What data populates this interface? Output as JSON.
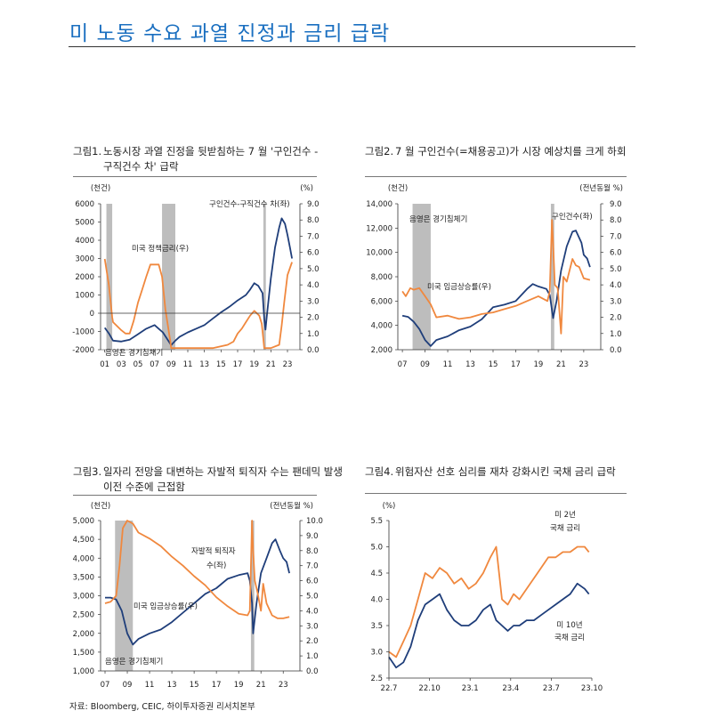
{
  "page": {
    "title": "미 노동 수요 과열 진정과 금리 급락",
    "source": "자료: Bloomberg, CEIC, 하이투자증권 리서치본부"
  },
  "colors": {
    "navy": "#1f3e7a",
    "orange": "#f0883e",
    "recession": "#bdbdbd",
    "title_blue": "#1a6fc0"
  },
  "panels": [
    {
      "label": "그림1.",
      "title_line1": "노동시장 과열 진정을 뒷받침하는 7 월 '구인건수 -",
      "title_line2": "구직건수 차' 급락"
    },
    {
      "label": "그림2.",
      "title_line1": "7 월 구인건수(=채용공고)가 시장 예상치를 크게 하회",
      "title_line2": ""
    },
    {
      "label": "그림3.",
      "title_line1": "일자리 전망을 대변하는 자발적 퇴직자 수는 팬데믹 발생",
      "title_line2": "이전 수준에 근접함"
    },
    {
      "label": "그림4.",
      "title_line1": "위험자산 선호 심리를 재차 강화시킨 국채 금리 급락",
      "title_line2": ""
    }
  ],
  "chart_data": [
    {
      "type": "line",
      "title": "노동시장 과열 진정을 뒷받침하는 7 월 '구인건수 - 구직건수 차' 급락",
      "left_unit": "(천건)",
      "right_unit": "(%)",
      "xlim": [
        2000.5,
        2024.5
      ],
      "left_ylim": [
        -2000,
        6000
      ],
      "right_ylim": [
        0,
        9
      ],
      "left_ticks": [
        "6000",
        "5000",
        "4000",
        "3000",
        "2000",
        "1000",
        "0",
        "-1000",
        "-2000"
      ],
      "right_ticks": [
        "9.0",
        "8.0",
        "7.0",
        "6.0",
        "5.0",
        "4.0",
        "3.0",
        "2.0",
        "1.0",
        "0.0"
      ],
      "x_ticks": [
        "01",
        "03",
        "05",
        "07",
        "09",
        "11",
        "13",
        "15",
        "17",
        "19",
        "21",
        "23"
      ],
      "recessions": [
        [
          2001.2,
          2001.9
        ],
        [
          2007.9,
          2009.5
        ],
        [
          2020.1,
          2020.4
        ]
      ],
      "recession_label": "음영은 경기침체기",
      "zero_line": 0,
      "series": [
        {
          "name": "구인건수-구직건수 차(좌)",
          "axis": "left",
          "color": "navy",
          "x": [
            2001,
            2001.5,
            2002,
            2003,
            2004,
            2005,
            2006,
            2007,
            2007.5,
            2008,
            2008.5,
            2009,
            2009.5,
            2010,
            2011,
            2012,
            2013,
            2014,
            2015,
            2016,
            2017,
            2018,
            2018.5,
            2019,
            2019.5,
            2020,
            2020.2,
            2020.35,
            2020.5,
            2021,
            2021.5,
            2022,
            2022.3,
            2022.7,
            2023,
            2023.3,
            2023.55
          ],
          "values": [
            -800,
            -1100,
            -1500,
            -1550,
            -1450,
            -1150,
            -850,
            -650,
            -850,
            -1050,
            -1400,
            -1750,
            -1500,
            -1300,
            -1050,
            -850,
            -650,
            -300,
            50,
            350,
            700,
            1000,
            1300,
            1650,
            1500,
            1100,
            -300,
            -900,
            -200,
            1900,
            3600,
            4700,
            5200,
            4900,
            4300,
            3600,
            3000
          ]
        },
        {
          "name": "미국 정책금리(우)",
          "axis": "right",
          "color": "orange",
          "x": [
            2001,
            2001.5,
            2001.9,
            2002,
            2003,
            2003.5,
            2004,
            2004.5,
            2005,
            2005.5,
            2006,
            2006.5,
            2007,
            2007.5,
            2007.9,
            2008.3,
            2008.9,
            2009,
            2010,
            2012,
            2014,
            2015.8,
            2016.5,
            2017,
            2017.5,
            2018,
            2018.5,
            2019,
            2019.6,
            2019.9,
            2020.2,
            2021,
            2022,
            2022.3,
            2022.6,
            2023,
            2023.55
          ],
          "values": [
            5.6,
            4.0,
            2.0,
            1.7,
            1.2,
            1.0,
            1.0,
            1.8,
            2.9,
            3.7,
            4.5,
            5.25,
            5.25,
            5.25,
            4.5,
            2.5,
            0.5,
            0.1,
            0.1,
            0.1,
            0.1,
            0.3,
            0.5,
            1.0,
            1.3,
            1.7,
            2.1,
            2.4,
            2.1,
            1.6,
            0.1,
            0.1,
            0.3,
            1.5,
            2.9,
            4.6,
            5.4
          ]
        }
      ],
      "labels": {
        "series1": "구인건수-구직건수 차(좌)",
        "series2": "미국 정책금리(우)"
      }
    },
    {
      "type": "line",
      "title": "7 월 구인건수(=채용공고)가 시장 예상치를 크게 하회",
      "left_unit": "(천건)",
      "right_unit": "(전년동월 %)",
      "xlim": [
        2006.6,
        2024.5
      ],
      "left_ylim": [
        2000,
        14000
      ],
      "right_ylim": [
        0,
        9
      ],
      "left_ticks": [
        "14,000",
        "12,000",
        "10,000",
        "8,000",
        "6,000",
        "4,000",
        "2,000"
      ],
      "right_ticks": [
        "9.0",
        "8.0",
        "7.0",
        "6.0",
        "5.0",
        "4.0",
        "3.0",
        "2.0",
        "1.0",
        "0.0"
      ],
      "x_ticks": [
        "07",
        "09",
        "11",
        "13",
        "15",
        "17",
        "19",
        "21",
        "23"
      ],
      "recessions": [
        [
          2007.9,
          2009.5
        ],
        [
          2020.1,
          2020.4
        ]
      ],
      "recession_label": "음영은 경기침체기",
      "series": [
        {
          "name": "구인건수(좌)",
          "axis": "left",
          "color": "navy",
          "x": [
            2007,
            2007.5,
            2008,
            2008.5,
            2009,
            2009.5,
            2010,
            2011,
            2012,
            2013,
            2014,
            2015,
            2016,
            2017,
            2018,
            2018.5,
            2019,
            2019.7,
            2020,
            2020.3,
            2020.6,
            2021,
            2021.5,
            2022,
            2022.3,
            2022.8,
            2023,
            2023.3,
            2023.55
          ],
          "values": [
            4800,
            4700,
            4300,
            3700,
            2800,
            2300,
            2800,
            3100,
            3600,
            3900,
            4500,
            5500,
            5700,
            6000,
            7000,
            7400,
            7200,
            7000,
            6500,
            4600,
            6000,
            8500,
            10500,
            11700,
            11800,
            10800,
            9800,
            9500,
            8800
          ]
        },
        {
          "name": "미국 임금상승률(우)",
          "axis": "right",
          "color": "orange",
          "x": [
            2007,
            2007.3,
            2007.7,
            2008,
            2008.5,
            2009,
            2009.5,
            2010,
            2011,
            2012,
            2013,
            2014,
            2015,
            2016,
            2017,
            2018,
            2019,
            2019.8,
            2020,
            2020.2,
            2020.3,
            2020.45,
            2020.7,
            2021,
            2021.2,
            2021.5,
            2022,
            2022.3,
            2022.6,
            2023,
            2023.55
          ],
          "values": [
            3.6,
            3.3,
            3.8,
            3.7,
            3.8,
            3.3,
            2.8,
            2.0,
            2.1,
            1.9,
            2.0,
            2.2,
            2.3,
            2.5,
            2.7,
            3.0,
            3.3,
            3.0,
            3.6,
            8.0,
            6.5,
            4.0,
            3.8,
            1.0,
            4.5,
            4.2,
            5.6,
            5.2,
            5.1,
            4.4,
            4.3
          ]
        }
      ],
      "labels": {
        "series1": "구인건수(좌)",
        "series2": "미국 임금상승률(우)"
      }
    },
    {
      "type": "line",
      "title": "일자리 전망을 대변하는 자발적 퇴직자 수는 팬데믹 발생 이전 수준에 근접함",
      "left_unit": "(천건)",
      "right_unit": "(전년동월 %)",
      "xlim": [
        2006.6,
        2024.5
      ],
      "left_ylim": [
        1000,
        5000
      ],
      "right_ylim": [
        0,
        10
      ],
      "left_ticks": [
        "5,000",
        "4,500",
        "4,000",
        "3,500",
        "3,000",
        "2,500",
        "2,000",
        "1,500",
        "1,000"
      ],
      "right_ticks": [
        "10.0",
        "9.0",
        "8.0",
        "7.0",
        "6.0",
        "5.0",
        "4.0",
        "3.0",
        "2.0",
        "1.0",
        "0.0"
      ],
      "x_ticks": [
        "07",
        "09",
        "11",
        "13",
        "15",
        "17",
        "19",
        "21",
        "23"
      ],
      "recessions": [
        [
          2007.9,
          2009.5
        ],
        [
          2020.1,
          2020.4
        ]
      ],
      "recession_label": "음영은 경기침체기",
      "series": [
        {
          "name": "자발적 퇴직자 수(좌)",
          "axis": "left",
          "color": "navy",
          "x": [
            2007,
            2007.5,
            2008,
            2008.5,
            2009,
            2009.5,
            2010,
            2011,
            2012,
            2013,
            2014,
            2015,
            2016,
            2017,
            2018,
            2019,
            2019.8,
            2020,
            2020.2,
            2020.3,
            2020.6,
            2021,
            2021.5,
            2022,
            2022.3,
            2022.7,
            2023,
            2023.3,
            2023.55
          ],
          "values": [
            2950,
            2950,
            2900,
            2600,
            2000,
            1700,
            1850,
            2000,
            2100,
            2300,
            2550,
            2800,
            3050,
            3200,
            3450,
            3550,
            3600,
            3400,
            2800,
            2000,
            2800,
            3600,
            4000,
            4400,
            4500,
            4200,
            4000,
            3900,
            3600
          ]
        },
        {
          "name": "미국 임금상승률(우)",
          "axis": "right",
          "color": "orange",
          "x": [
            2007,
            2007.5,
            2008,
            2008.3,
            2008.6,
            2009,
            2009.5,
            2010,
            2011,
            2012,
            2013,
            2014,
            2015,
            2016,
            2017,
            2018,
            2019,
            2019.8,
            2020,
            2020.2,
            2020.3,
            2020.45,
            2020.7,
            2021,
            2021.2,
            2021.5,
            2022,
            2022.5,
            2023,
            2023.55
          ],
          "values": [
            4.5,
            4.6,
            5.0,
            7.0,
            9.5,
            10.0,
            9.8,
            9.2,
            8.8,
            8.3,
            7.6,
            7.0,
            6.3,
            5.7,
            4.9,
            4.3,
            3.8,
            3.7,
            4.0,
            10.0,
            8.0,
            6.0,
            5.2,
            4.0,
            5.8,
            4.5,
            3.7,
            3.5,
            3.5,
            3.6
          ]
        }
      ],
      "labels": {
        "series1a": "자발적 퇴직자",
        "series1b": "수(좌)",
        "series2": "미국 임금상승률(우)"
      }
    },
    {
      "type": "line",
      "title": "위험자산 선호 심리를 재차 강화시킨 국채 금리 급락",
      "left_unit": "(%)",
      "xlim": [
        0,
        14
      ],
      "left_ylim": [
        2.5,
        5.5
      ],
      "left_ticks": [
        "5.5",
        "5.0",
        "4.5",
        "4.0",
        "3.5",
        "3.0",
        "2.5"
      ],
      "x_ticks": [
        "22.7",
        "22.10",
        "23.1",
        "23.4",
        "23.7",
        "23.10"
      ],
      "x_tick_positions": [
        0,
        3,
        6,
        9,
        12,
        15
      ],
      "series": [
        {
          "name": "미 2년 국채 금리",
          "color": "orange",
          "x": [
            0,
            0.5,
            1,
            1.5,
            2,
            2.5,
            3,
            3.5,
            4,
            4.5,
            5,
            5.5,
            6,
            6.5,
            7,
            7.4,
            7.8,
            8.2,
            8.6,
            9,
            9.5,
            10,
            10.5,
            11,
            11.5,
            12,
            12.5,
            13,
            13.5,
            13.8
          ],
          "values": [
            3.0,
            2.9,
            3.2,
            3.5,
            4.0,
            4.5,
            4.4,
            4.6,
            4.5,
            4.3,
            4.4,
            4.2,
            4.3,
            4.5,
            4.8,
            5.0,
            4.0,
            3.9,
            4.1,
            4.0,
            4.2,
            4.4,
            4.6,
            4.8,
            4.8,
            4.9,
            4.9,
            5.0,
            5.0,
            4.9
          ]
        },
        {
          "name": "미 10년 국채 금리",
          "color": "navy",
          "x": [
            0,
            0.5,
            1,
            1.5,
            2,
            2.5,
            3,
            3.5,
            4,
            4.5,
            5,
            5.5,
            6,
            6.5,
            7,
            7.4,
            7.8,
            8.2,
            8.6,
            9,
            9.5,
            10,
            10.5,
            11,
            11.5,
            12,
            12.5,
            13,
            13.5,
            13.8
          ],
          "values": [
            2.9,
            2.7,
            2.8,
            3.1,
            3.6,
            3.9,
            4.0,
            4.1,
            3.8,
            3.6,
            3.5,
            3.5,
            3.6,
            3.8,
            3.9,
            3.6,
            3.5,
            3.4,
            3.5,
            3.5,
            3.6,
            3.6,
            3.7,
            3.8,
            3.9,
            4.0,
            4.1,
            4.3,
            4.2,
            4.1
          ]
        }
      ],
      "labels": {
        "s1a": "미 2년",
        "s1b": "국채 금리",
        "s2a": "미 10년",
        "s2b": "국채 금리"
      }
    }
  ]
}
